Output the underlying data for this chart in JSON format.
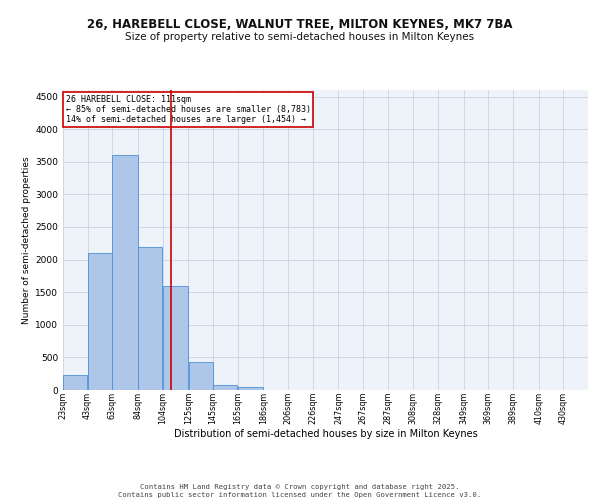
{
  "title_line1": "26, HAREBELL CLOSE, WALNUT TREE, MILTON KEYNES, MK7 7BA",
  "title_line2": "Size of property relative to semi-detached houses in Milton Keynes",
  "xlabel": "Distribution of semi-detached houses by size in Milton Keynes",
  "ylabel": "Number of semi-detached properties",
  "footer_line1": "Contains HM Land Registry data © Crown copyright and database right 2025.",
  "footer_line2": "Contains public sector information licensed under the Open Government Licence v3.0.",
  "annotation_title": "26 HAREBELL CLOSE: 111sqm",
  "annotation_line1": "← 85% of semi-detached houses are smaller (8,783)",
  "annotation_line2": "14% of semi-detached houses are larger (1,454) →",
  "property_size": 111,
  "bar_left_edges": [
    23,
    43,
    63,
    84,
    104,
    125,
    145,
    165,
    186,
    206,
    226,
    247,
    267,
    287,
    308,
    328,
    349,
    369,
    389,
    410
  ],
  "bar_widths": [
    20,
    20,
    21,
    20,
    21,
    20,
    20,
    21,
    20,
    20,
    21,
    20,
    20,
    21,
    20,
    21,
    20,
    20,
    21,
    20
  ],
  "bar_heights": [
    230,
    2100,
    3600,
    2200,
    1600,
    430,
    80,
    50,
    0,
    0,
    0,
    0,
    0,
    0,
    0,
    0,
    0,
    0,
    0,
    0
  ],
  "tick_labels": [
    "23sqm",
    "43sqm",
    "63sqm",
    "84sqm",
    "104sqm",
    "125sqm",
    "145sqm",
    "165sqm",
    "186sqm",
    "206sqm",
    "226sqm",
    "247sqm",
    "267sqm",
    "287sqm",
    "308sqm",
    "328sqm",
    "349sqm",
    "369sqm",
    "389sqm",
    "410sqm",
    "430sqm"
  ],
  "tick_positions": [
    23,
    43,
    63,
    84,
    104,
    125,
    145,
    165,
    186,
    206,
    226,
    247,
    267,
    287,
    308,
    328,
    349,
    369,
    389,
    410,
    430
  ],
  "bar_color": "#aec6e8",
  "bar_edge_color": "#4a90d9",
  "vline_color": "#cc0000",
  "vline_x": 111,
  "annotation_box_color": "#cc0000",
  "bg_color": "#eef2f9",
  "grid_color": "#d0d8e8",
  "ylim": [
    0,
    4600
  ],
  "yticks": [
    0,
    500,
    1000,
    1500,
    2000,
    2500,
    3000,
    3500,
    4000,
    4500
  ],
  "xlim_left": 23,
  "xlim_right": 450
}
